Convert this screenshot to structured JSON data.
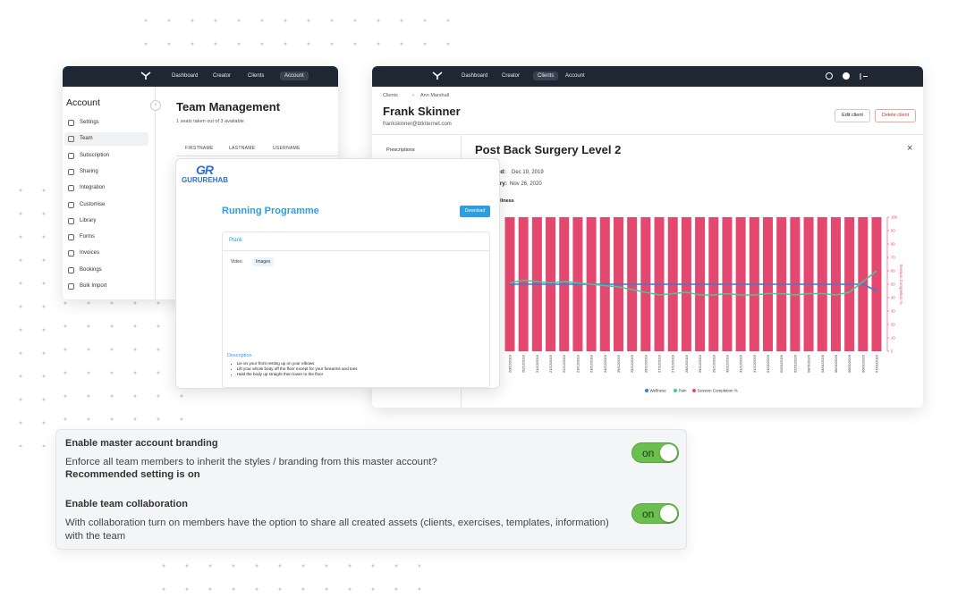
{
  "account_window": {
    "nav": [
      "Dashboard",
      "Creator",
      "Clients",
      "Account"
    ],
    "sidebar_title": "Account",
    "menu": [
      "Settings",
      "Team",
      "Subscription",
      "Sharing",
      "Integration",
      "Customise",
      "Library",
      "Forms",
      "Invoices",
      "Bookings",
      "Bulk Import"
    ],
    "title": "Team Management",
    "seats": "1 seats taken out of 3 available",
    "columns": [
      "FIRSTNAME",
      "LASTNAME",
      "USERNAME"
    ]
  },
  "client_window": {
    "nav": [
      "Dashboard",
      "Creator",
      "Clients",
      "Account"
    ],
    "breadcrumb": [
      "Clients",
      "Ann Marshall"
    ],
    "name": "Frank Skinner",
    "email": "frankskinner@btinternet.com",
    "buttons": [
      "Edit client",
      "Delete client"
    ],
    "section": "Prescriptions",
    "report": {
      "title": "Post Back Surgery Level 2",
      "created_label": "Created:",
      "created": "Dec 19, 2019",
      "expiry_label": "Expiry:",
      "expiry": "Nov 26, 2020",
      "chart_title": "Wellness",
      "chart": {
        "type": "bar-line",
        "categories": [
          "20/12/2019",
          "20/12/2019",
          "21/12/2019",
          "21/12/2019",
          "22/12/2019",
          "23/12/2019",
          "23/12/2019",
          "24/12/2019",
          "25/12/2019",
          "25/12/2019",
          "26/12/2019",
          "27/12/2019",
          "27/12/2019",
          "28/12/2019",
          "29/12/2019",
          "29/12/2019",
          "30/12/2019",
          "31/12/2019",
          "31/12/2019",
          "01/01/2020",
          "02/01/2020",
          "02/01/2020",
          "03/01/2020",
          "04/01/2020",
          "05/01/2020",
          "06/01/2020",
          "06/01/2020",
          "07/01/2020"
        ],
        "series": [
          {
            "name": "Wellness",
            "type": "line",
            "color": "#2f7fe0",
            "values": [
              50,
              50,
              50,
              50,
              50,
              50,
              50,
              50,
              50,
              50,
              50,
              50,
              50,
              50,
              50,
              50,
              50,
              50,
              50,
              50,
              50,
              50,
              50,
              50,
              50,
              50,
              50,
              45
            ]
          },
          {
            "name": "Pain",
            "type": "line",
            "color": "#45c79a",
            "values": [
              51,
              53,
              52,
              51,
              52,
              51,
              50,
              49,
              48,
              46,
              44,
              42,
              43,
              44,
              42,
              42,
              43,
              42,
              42,
              43,
              43,
              42,
              43,
              43,
              42,
              44,
              52,
              60
            ]
          },
          {
            "name": "Session Completion %",
            "type": "bar",
            "color": "#e5486e",
            "values": [
              100,
              100,
              100,
              100,
              100,
              100,
              100,
              100,
              100,
              100,
              100,
              100,
              100,
              100,
              100,
              100,
              100,
              100,
              100,
              100,
              100,
              100,
              100,
              100,
              100,
              100,
              100,
              100
            ]
          }
        ],
        "ylim": [
          0,
          100
        ],
        "yticks": [
          0,
          10,
          20,
          30,
          40,
          50,
          60,
          70,
          80,
          90,
          100
        ],
        "y_label": "Session Completion %"
      }
    }
  },
  "programme_window": {
    "logo_mark": "GR",
    "logo": "GURUREHAB",
    "title": "Running Programme",
    "button": "Download",
    "exercise": "Plank",
    "tabs": [
      "Video",
      "Images"
    ],
    "description_title": "Description",
    "description": [
      "Lie on your front resting up on your elbows",
      "Lift your whole body off the floor except for your forearms and toes",
      "Hold the body up straight then lower to the floor"
    ]
  },
  "settings": {
    "items": [
      {
        "title": "Enable master account branding",
        "text": "Enforce all team members to inherit the styles / branding from this master account?",
        "note": "Recommended setting is on",
        "toggle": "on"
      },
      {
        "title": "Enable team collaboration",
        "text": "With collaboration turn on members have the option to share all created assets (clients, exercises, templates, information) with the team",
        "toggle": "on"
      }
    ]
  }
}
